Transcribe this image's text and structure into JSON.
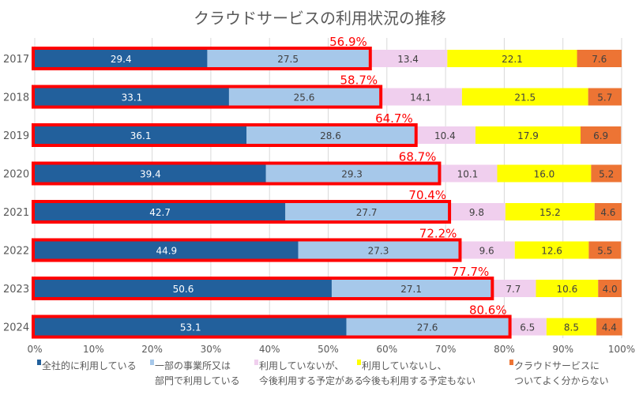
{
  "chart_data": {
    "type": "bar",
    "orientation": "horizontal",
    "stacked": true,
    "title": "クラウドサービスの利用状況の推移",
    "categories": [
      "2017",
      "2018",
      "2019",
      "2020",
      "2021",
      "2022",
      "2023",
      "2024"
    ],
    "series": [
      {
        "name": "全社的に利用している",
        "color": "#22609c",
        "values": [
          29.4,
          33.1,
          36.1,
          39.4,
          42.7,
          44.9,
          50.6,
          53.1
        ]
      },
      {
        "name": "一部の事業所又は部門で利用している",
        "color": "#a6c8ea",
        "values": [
          27.5,
          25.6,
          28.6,
          29.3,
          27.7,
          27.3,
          27.1,
          27.6
        ]
      },
      {
        "name": "利用していないが、今後利用する予定がある",
        "color": "#f0cfee",
        "values": [
          13.4,
          14.1,
          10.4,
          10.1,
          9.8,
          9.6,
          7.7,
          6.5
        ]
      },
      {
        "name": "利用していないし、今後も利用する予定もない",
        "color": "#ffff00",
        "values": [
          22.1,
          21.5,
          17.9,
          16.0,
          15.2,
          12.6,
          10.6,
          8.5
        ]
      },
      {
        "name": "クラウドサービスについてよく分からない",
        "color": "#ed7434",
        "values": [
          7.6,
          5.7,
          6.9,
          5.2,
          4.6,
          5.5,
          4.0,
          4.4
        ]
      }
    ],
    "legend_lines": [
      [
        "全社的に利用している"
      ],
      [
        "一部の事業所又は",
        "部門で利用している"
      ],
      [
        "利用していないが、",
        "今後利用する予定がある"
      ],
      [
        "利用していないし、",
        "今後も利用する予定もない"
      ],
      [
        "クラウドサービスに",
        "ついてよく分からない"
      ]
    ],
    "totals_label": [
      "56.9%",
      "58.7%",
      "64.7%",
      "68.7%",
      "70.4%",
      "72.2%",
      "77.7%",
      "80.6%"
    ],
    "highlight_color": "#ff0000",
    "xlim": [
      0,
      100
    ],
    "x_ticks": [
      "0%",
      "10%",
      "20%",
      "30%",
      "40%",
      "50%",
      "60%",
      "70%",
      "80%",
      "90%",
      "100%"
    ],
    "grid": true,
    "legend_position": "bottom"
  }
}
